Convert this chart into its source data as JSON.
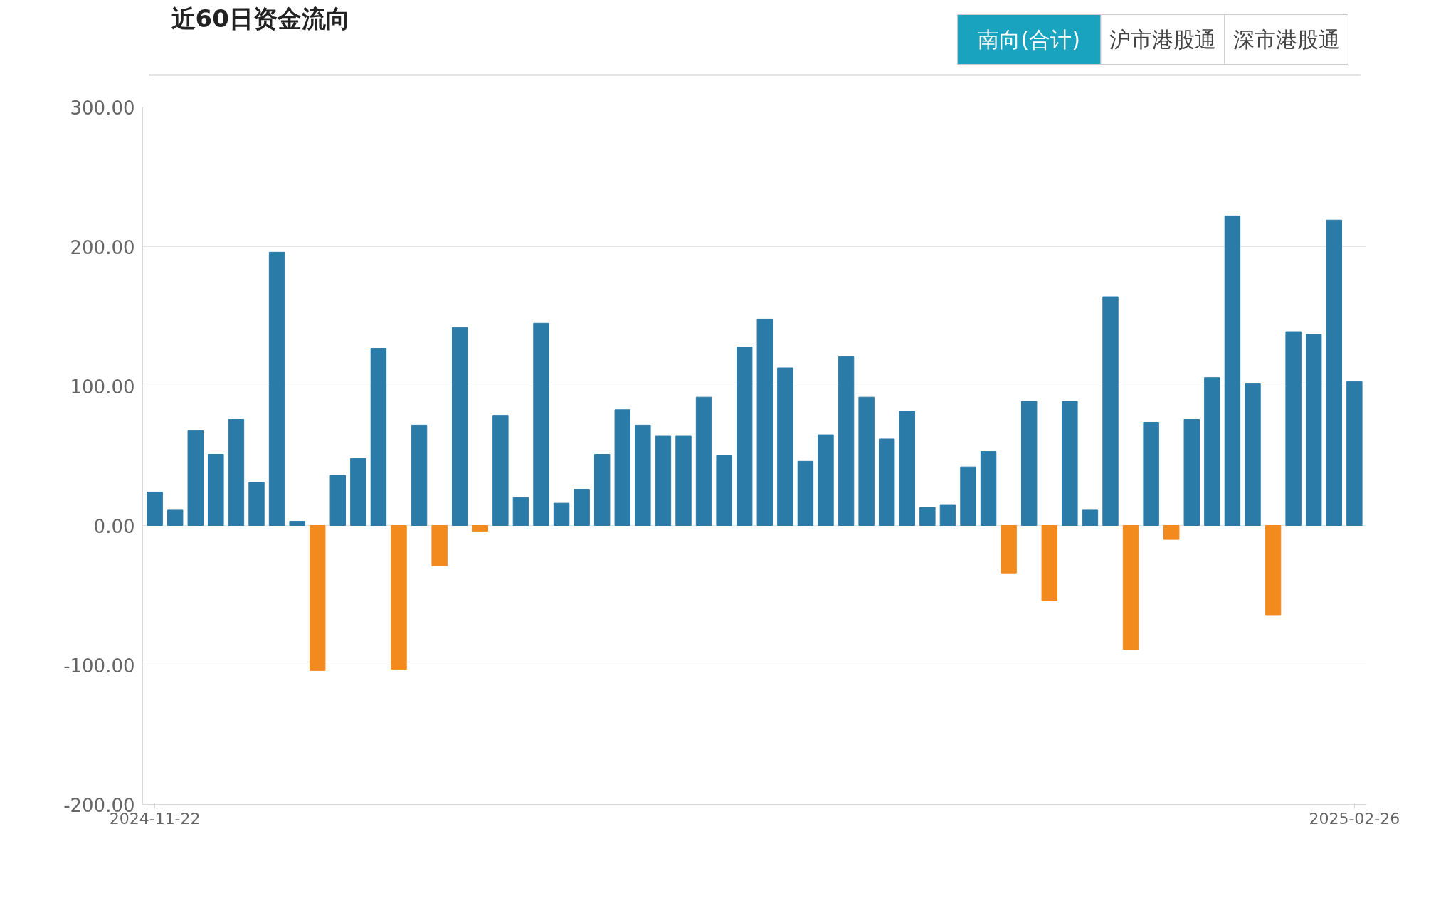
{
  "chart_data": {
    "type": "bar",
    "title": "近60日资金流向",
    "annotations": [
      "南向(合计)",
      "沪市港股通",
      "深市港股通"
    ],
    "categories": [
      "2024-11-22",
      null,
      null,
      null,
      null,
      null,
      null,
      null,
      null,
      null,
      null,
      null,
      null,
      null,
      null,
      null,
      null,
      null,
      null,
      null,
      null,
      null,
      null,
      null,
      null,
      null,
      null,
      null,
      null,
      null,
      null,
      null,
      null,
      null,
      null,
      null,
      null,
      null,
      null,
      null,
      null,
      null,
      null,
      null,
      null,
      null,
      null,
      null,
      null,
      null,
      null,
      null,
      null,
      null,
      null,
      null,
      null,
      null,
      null,
      "2025-02-26"
    ],
    "values": [
      24,
      11,
      68,
      51,
      76,
      31,
      196,
      3,
      -104,
      36,
      48,
      127,
      -103,
      72,
      -29,
      142,
      -4,
      79,
      20,
      145,
      16,
      26,
      51,
      83,
      72,
      64,
      64,
      92,
      50,
      128,
      148,
      113,
      46,
      65,
      121,
      92,
      62,
      82,
      13,
      15,
      42,
      53,
      -34,
      89,
      -54,
      89,
      11,
      164,
      -89,
      74,
      -10,
      76,
      106,
      222,
      102,
      -64,
      139,
      137,
      219,
      103
    ],
    "colors": [
      "#2b7ba8",
      "#2b7ba8",
      "#2b7ba8",
      "#2b7ba8",
      "#2b7ba8",
      "#2b7ba8",
      "#2b7ba8",
      "#2b7ba8",
      "#f28a1e",
      "#2b7ba8",
      "#2b7ba8",
      "#2b7ba8",
      "#f28a1e",
      "#2b7ba8",
      "#f28a1e",
      "#2b7ba8",
      "#f28a1e",
      "#2b7ba8",
      "#2b7ba8",
      "#2b7ba8",
      "#2b7ba8",
      "#2b7ba8",
      "#2b7ba8",
      "#2b7ba8",
      "#2b7ba8",
      "#2b7ba8",
      "#2b7ba8",
      "#2b7ba8",
      "#2b7ba8",
      "#2b7ba8",
      "#2b7ba8",
      "#2b7ba8",
      "#2b7ba8",
      "#2b7ba8",
      "#2b7ba8",
      "#2b7ba8",
      "#2b7ba8",
      "#2b7ba8",
      "#2b7ba8",
      "#2b7ba8",
      "#2b7ba8",
      "#2b7ba8",
      "#f28a1e",
      "#2b7ba8",
      "#f28a1e",
      "#2b7ba8",
      "#2b7ba8",
      "#2b7ba8",
      "#f28a1e",
      "#2b7ba8",
      "#f28a1e",
      "#2b7ba8",
      "#2b7ba8",
      "#2b7ba8",
      "#2b7ba8",
      "#f28a1e",
      "#2b7ba8",
      "#2b7ba8",
      "#2b7ba8",
      "#2b7ba8"
    ],
    "ylim": [
      -200,
      300
    ],
    "yticks": [
      {
        "value": -200,
        "label": "-200.00"
      },
      {
        "value": -100,
        "label": "-100.00"
      },
      {
        "value": 0,
        "label": "0.00"
      },
      {
        "value": 100,
        "label": "100.00"
      },
      {
        "value": 200,
        "label": "200.00"
      },
      {
        "value": 300,
        "label": "300.00"
      }
    ],
    "grid": "y"
  }
}
